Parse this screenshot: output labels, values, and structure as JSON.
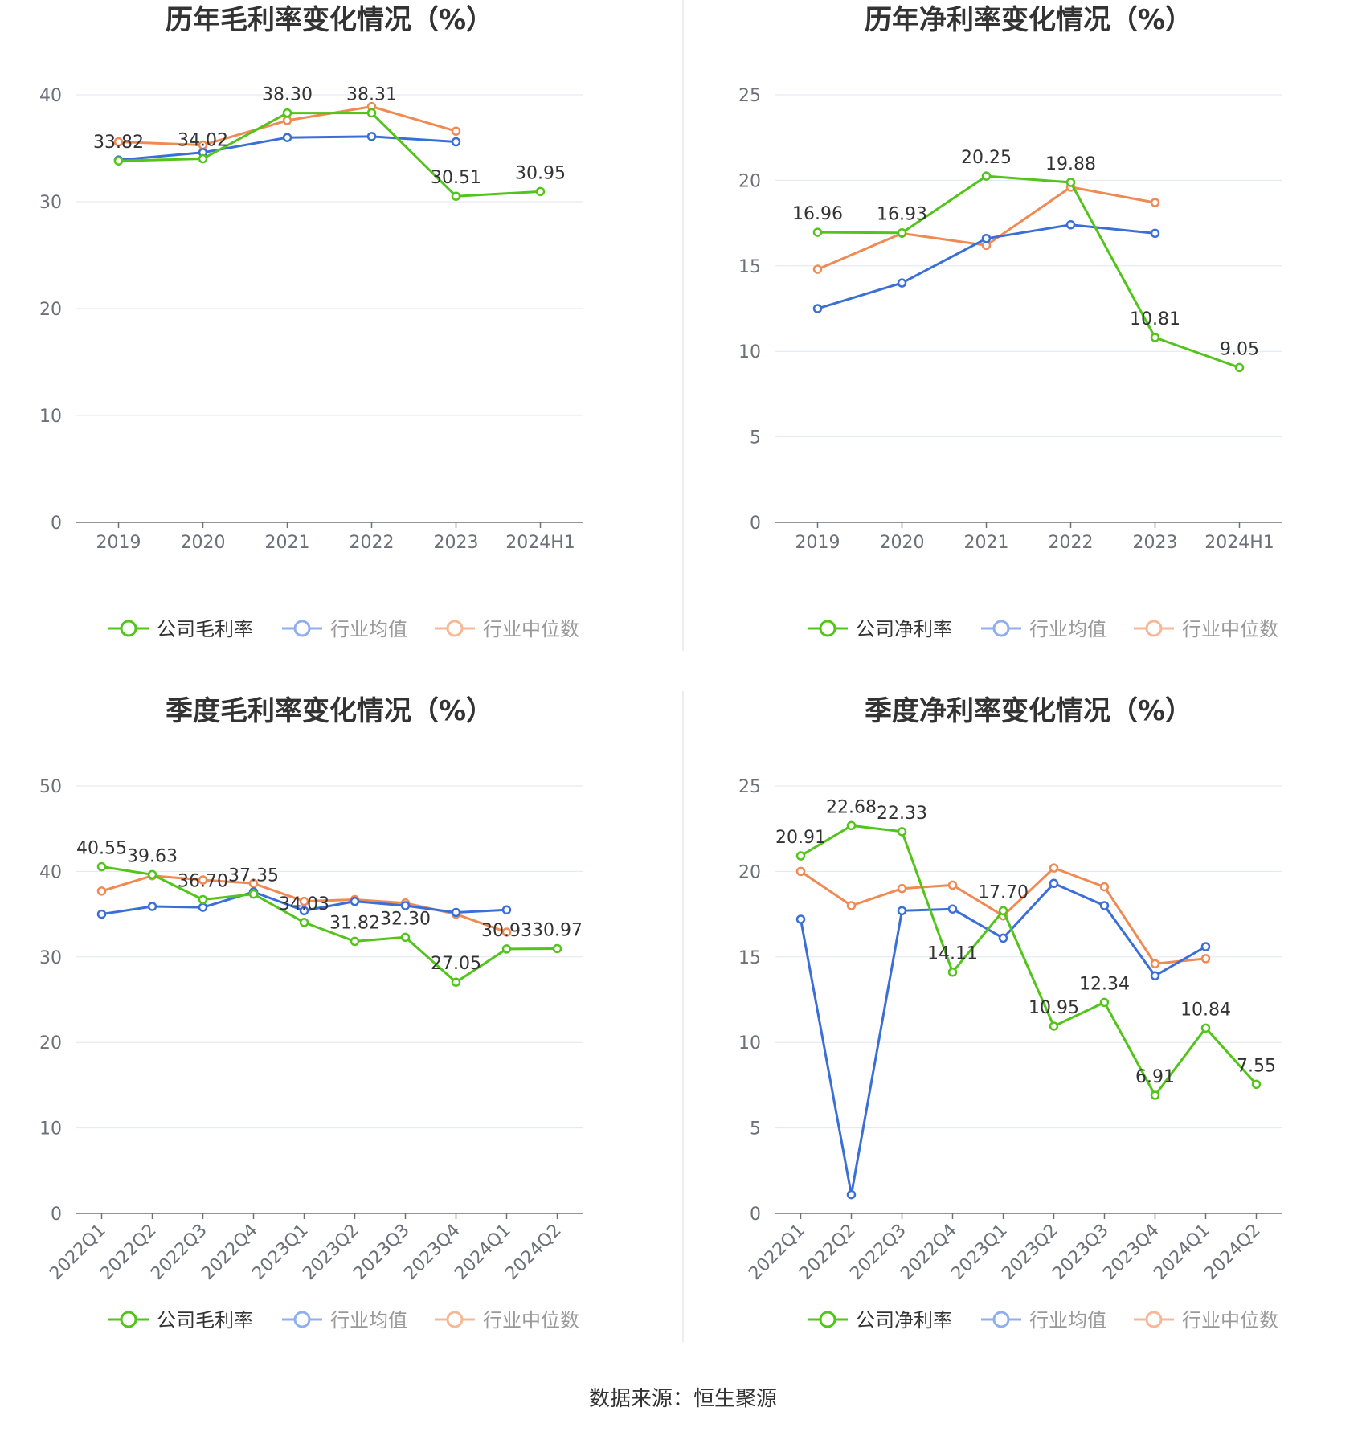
{
  "source": "数据来源：恒生聚源",
  "chart_data": [
    {
      "type": "line",
      "title": "历年毛利率变化情况（%）",
      "categories": [
        "2019",
        "2020",
        "2021",
        "2022",
        "2023",
        "2024H1"
      ],
      "ylim": [
        0,
        40
      ],
      "yticks": [
        0,
        10,
        20,
        30,
        40
      ],
      "legend_position": "bottom",
      "series": [
        {
          "name": "公司毛利率",
          "color": "#52c41a",
          "values": [
            33.82,
            34.02,
            38.3,
            38.31,
            30.51,
            30.95
          ],
          "labels": [
            "33.82",
            "34.02",
            "38.30",
            "38.31",
            "30.51",
            "30.95"
          ]
        },
        {
          "name": "行业均值",
          "color": "#3a6fd8",
          "values": [
            33.9,
            34.6,
            36.0,
            36.1,
            35.6,
            null
          ]
        },
        {
          "name": "行业中位数",
          "color": "#f08a54",
          "values": [
            35.6,
            35.3,
            37.6,
            38.9,
            36.6,
            null
          ]
        }
      ]
    },
    {
      "type": "line",
      "title": "历年净利率变化情况（%）",
      "categories": [
        "2019",
        "2020",
        "2021",
        "2022",
        "2023",
        "2024H1"
      ],
      "ylim": [
        0,
        25
      ],
      "yticks": [
        0,
        5,
        10,
        15,
        20,
        25
      ],
      "legend_position": "bottom",
      "series": [
        {
          "name": "公司净利率",
          "color": "#52c41a",
          "values": [
            16.96,
            16.93,
            20.25,
            19.88,
            10.81,
            9.05
          ],
          "labels": [
            "16.96",
            "16.93",
            "20.25",
            "19.88",
            "10.81",
            "9.05"
          ]
        },
        {
          "name": "行业均值",
          "color": "#3a6fd8",
          "values": [
            12.5,
            14.0,
            16.6,
            17.4,
            16.9,
            null
          ]
        },
        {
          "name": "行业中位数",
          "color": "#f08a54",
          "values": [
            14.8,
            16.9,
            16.2,
            19.6,
            18.7,
            null
          ]
        }
      ]
    },
    {
      "type": "line",
      "title": "季度毛利率变化情况（%）",
      "categories": [
        "2022Q1",
        "2022Q2",
        "2022Q3",
        "2022Q4",
        "2023Q1",
        "2023Q2",
        "2023Q3",
        "2023Q4",
        "2024Q1",
        "2024Q2"
      ],
      "ylim": [
        0,
        50
      ],
      "yticks": [
        0,
        10,
        20,
        30,
        40,
        50
      ],
      "legend_position": "bottom",
      "series": [
        {
          "name": "公司毛利率",
          "color": "#52c41a",
          "values": [
            40.55,
            39.63,
            36.7,
            37.35,
            34.03,
            31.82,
            32.3,
            27.05,
            30.93,
            30.97
          ],
          "labels": [
            "40.55",
            "39.63",
            "36.70",
            "37.35",
            "34.03",
            "31.82",
            "32.30",
            "27.05",
            "30.93",
            "30.97"
          ]
        },
        {
          "name": "行业均值",
          "color": "#3a6fd8",
          "values": [
            35.0,
            35.9,
            35.8,
            37.6,
            35.4,
            36.5,
            36.0,
            35.2,
            35.5,
            null
          ]
        },
        {
          "name": "行业中位数",
          "color": "#f08a54",
          "values": [
            37.7,
            39.5,
            39.0,
            38.6,
            36.5,
            36.7,
            36.3,
            35.0,
            32.9,
            null
          ]
        }
      ]
    },
    {
      "type": "line",
      "title": "季度净利率变化情况（%）",
      "categories": [
        "2022Q1",
        "2022Q2",
        "2022Q3",
        "2022Q4",
        "2023Q1",
        "2023Q2",
        "2023Q3",
        "2023Q4",
        "2024Q1",
        "2024Q2"
      ],
      "ylim": [
        0,
        25
      ],
      "yticks": [
        0,
        5,
        10,
        15,
        20,
        25
      ],
      "legend_position": "bottom",
      "series": [
        {
          "name": "公司净利率",
          "color": "#52c41a",
          "values": [
            20.91,
            22.68,
            22.33,
            14.11,
            17.7,
            10.95,
            12.34,
            6.91,
            10.84,
            7.55
          ],
          "labels": [
            "20.91",
            "22.68",
            "22.33",
            "14.11",
            "17.70",
            "10.95",
            "12.34",
            "6.91",
            "10.84",
            "7.55"
          ]
        },
        {
          "name": "行业均值",
          "color": "#3a6fd8",
          "values": [
            17.2,
            1.1,
            17.7,
            17.8,
            16.1,
            19.3,
            18.0,
            13.9,
            15.6,
            null
          ]
        },
        {
          "name": "行业中位数",
          "color": "#f08a54",
          "values": [
            20.0,
            18.0,
            19.0,
            19.2,
            17.4,
            20.2,
            19.1,
            14.6,
            14.9,
            null
          ]
        }
      ]
    }
  ]
}
